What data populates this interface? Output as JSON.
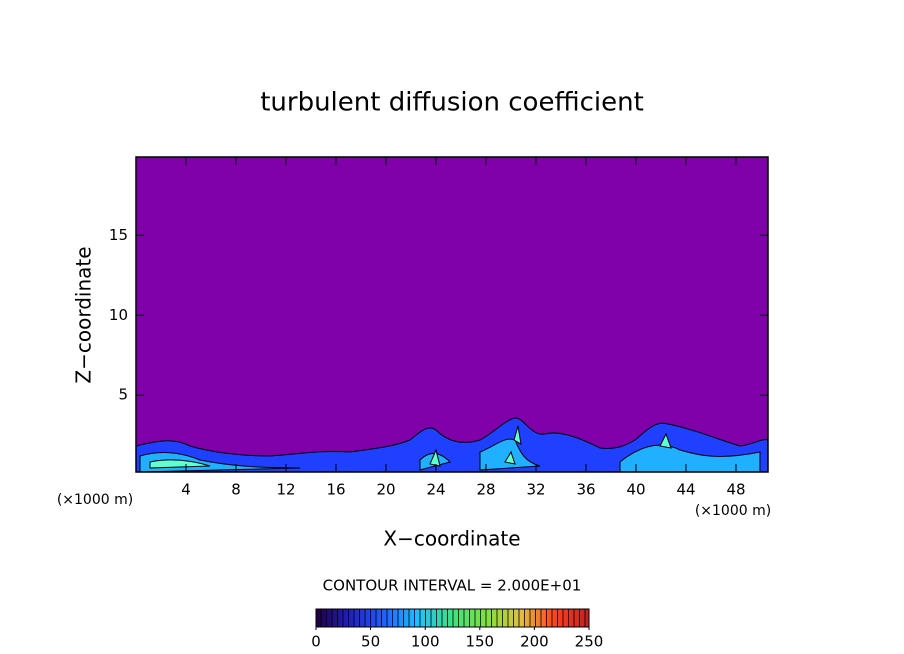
{
  "chart_data": {
    "type": "contour",
    "title": "turbulent diffusion coefficient",
    "xlabel": "X−coordinate",
    "ylabel": "Z−coordinate",
    "x_unit_label": "(×1000 m)",
    "xlim": [
      0,
      50.56
    ],
    "xticks": [
      4,
      8,
      12,
      16,
      20,
      24,
      28,
      32,
      36,
      40,
      44,
      48
    ],
    "ylim": [
      0.2,
      19.9
    ],
    "yticks": [
      5,
      10,
      15
    ],
    "background_color": "#8000aa",
    "colorbar": {
      "label": "CONTOUR INTERVAL = 2.000E+01",
      "lim": [
        0,
        250
      ],
      "ticks": [
        0,
        50,
        100,
        150,
        200,
        250
      ],
      "colors": [
        "#200040",
        "#2020c0",
        "#2060ff",
        "#20c0ff",
        "#40e080",
        "#80e040",
        "#e0c040",
        "#ff4020",
        "#c02020"
      ]
    }
  }
}
